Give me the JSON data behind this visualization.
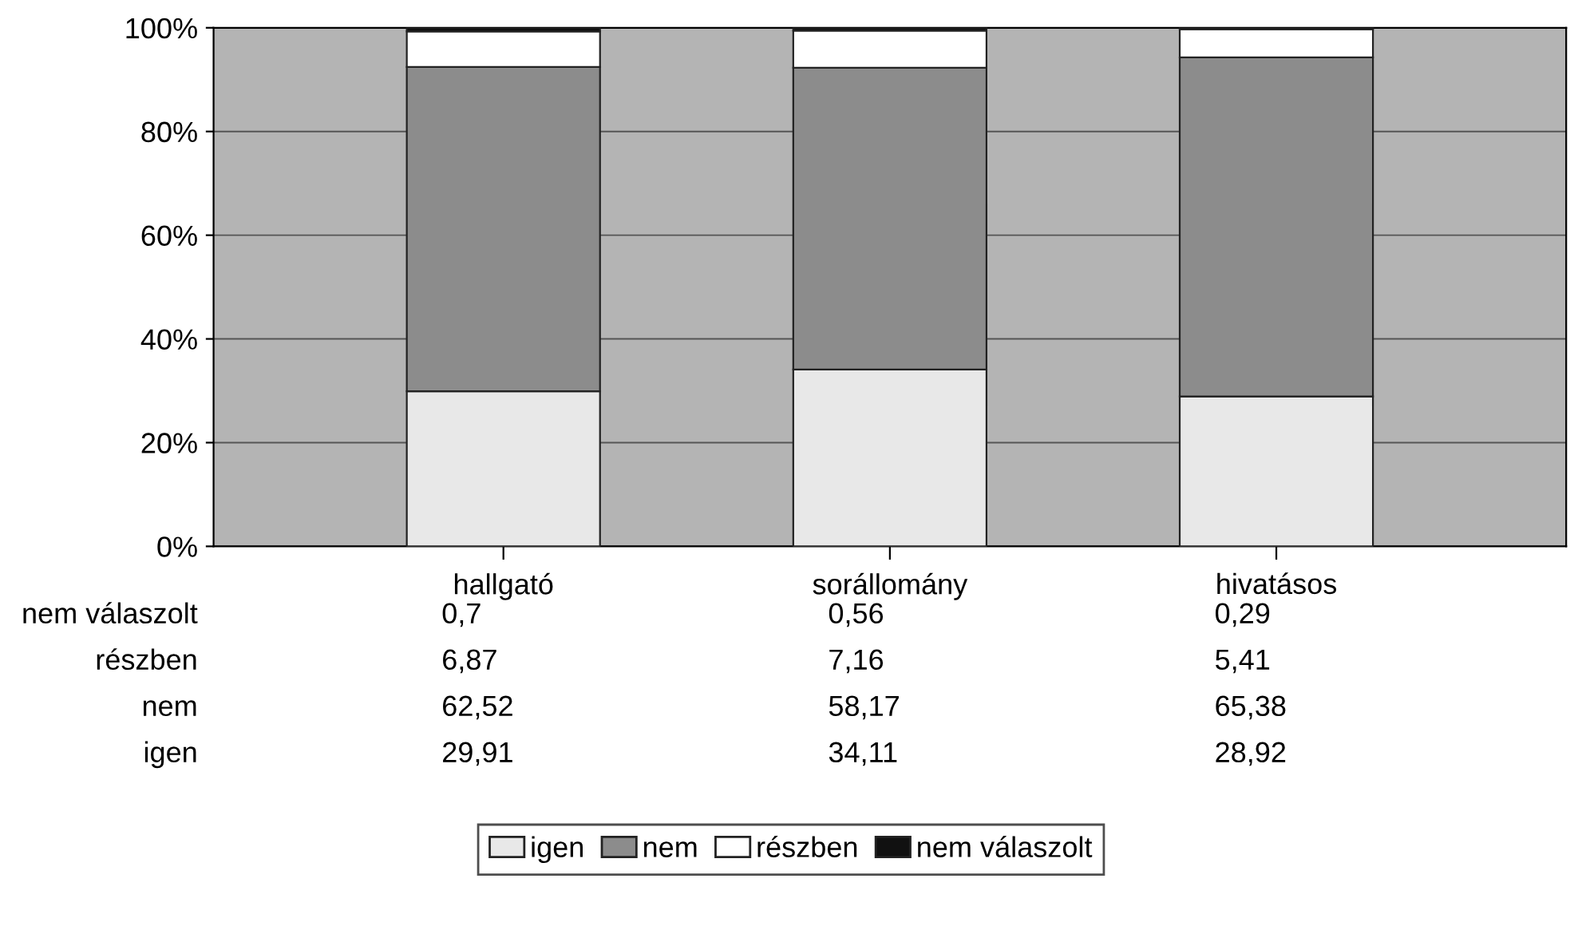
{
  "chart_data": {
    "type": "bar",
    "stacked": true,
    "categories": [
      "hallgató",
      "sorállomány",
      "hivatásos"
    ],
    "series": [
      {
        "name": "igen",
        "color": "#e8e8e8",
        "values": [
          29.91,
          34.11,
          28.92
        ],
        "value_labels": [
          "29,91",
          "34,11",
          "28,92"
        ]
      },
      {
        "name": "nem",
        "color": "#8c8c8c",
        "values": [
          62.52,
          58.17,
          65.38
        ],
        "value_labels": [
          "62,52",
          "58,17",
          "65,38"
        ]
      },
      {
        "name": "részben",
        "color": "#ffffff",
        "values": [
          6.87,
          7.16,
          5.41
        ],
        "value_labels": [
          "6,87",
          "7,16",
          "5,41"
        ]
      },
      {
        "name": "nem válaszolt",
        "color": "#111111",
        "values": [
          0.7,
          0.56,
          0.29
        ],
        "value_labels": [
          "0,7",
          "0,56",
          "0,29"
        ]
      }
    ],
    "ylim": [
      0,
      100
    ],
    "yticks": [
      {
        "value": 0,
        "label": "0%"
      },
      {
        "value": 20,
        "label": "20%"
      },
      {
        "value": 40,
        "label": "40%"
      },
      {
        "value": 60,
        "label": "60%"
      },
      {
        "value": 80,
        "label": "80%"
      },
      {
        "value": 100,
        "label": "100%"
      }
    ],
    "grid": "y",
    "legend": "bottom"
  }
}
